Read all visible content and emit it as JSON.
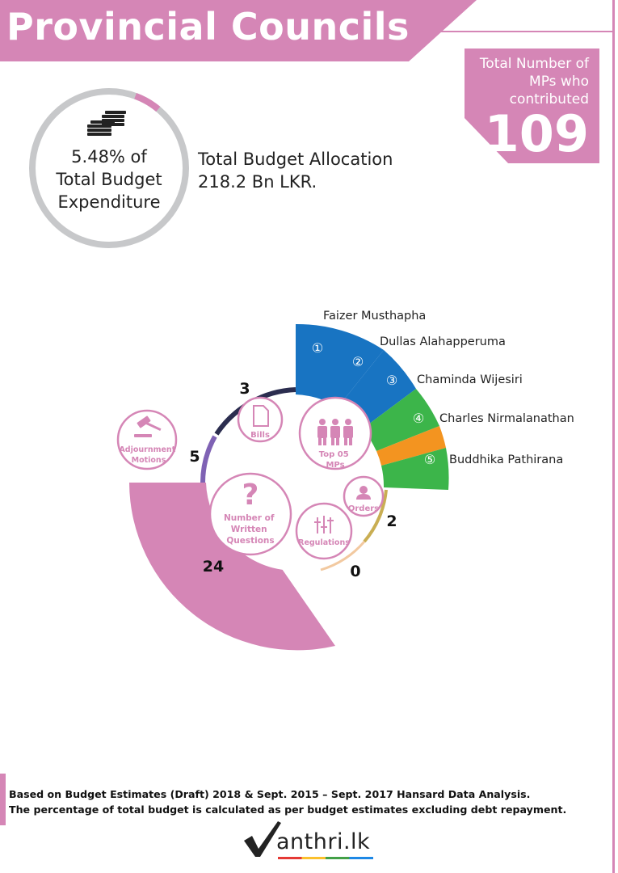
{
  "title": "Provincial Councils",
  "mps": {
    "label": "Total Number of MPs who contributed",
    "count": "109"
  },
  "budget_ring": {
    "percent_value": 5.48,
    "lines": [
      "5.48% of",
      "Total Budget",
      "Expenditure"
    ]
  },
  "budget_allocation": {
    "line1": "Total Budget Allocation",
    "line2": "218.2 Bn LKR."
  },
  "activity": {
    "questions": {
      "label_lines": [
        "Number of",
        "Written",
        "Questions"
      ],
      "value": "24"
    },
    "motions": {
      "label_lines": [
        "Adjournment",
        "Motions"
      ],
      "value": "5"
    },
    "bills": {
      "label": "Bills",
      "value": "3"
    },
    "orders": {
      "label": "Orders",
      "value": "2"
    },
    "regulations": {
      "label": "Regulations",
      "value": "0"
    },
    "top_mps": {
      "label_lines": [
        "Top 05",
        "MPs"
      ]
    }
  },
  "top_mps": [
    {
      "rank": "①",
      "name": "Faizer Musthapha",
      "color": "#1874c2"
    },
    {
      "rank": "②",
      "name": "Dullas Alahapperuma",
      "color": "#1874c2"
    },
    {
      "rank": "③",
      "name": "Chaminda Wijesiri",
      "color": "#3cb54a"
    },
    {
      "rank": "④",
      "name": "Charles Nirmalanathan",
      "color": "#f39420"
    },
    {
      "rank": "⑤",
      "name": "Buddhika Pathirana",
      "color": "#3cb54a"
    }
  ],
  "footer": {
    "line1": "Based on Budget Estimates (Draft) 2018 & Sept. 2015 – Sept. 2017 Hansard Data Analysis.",
    "line2": "The percentage of  total budget is calculated as per budget estimates excluding debt repayment."
  },
  "logo": {
    "text": "anthri.lk"
  },
  "colors": {
    "accent": "#d586b6",
    "ring_grey": "#c7c8ca",
    "bills_arc": "#2b2d4f",
    "motions_arc": "#7f62b4",
    "orders_arc": "#c9ae53",
    "regulations_arc": "#f2c9a0"
  }
}
